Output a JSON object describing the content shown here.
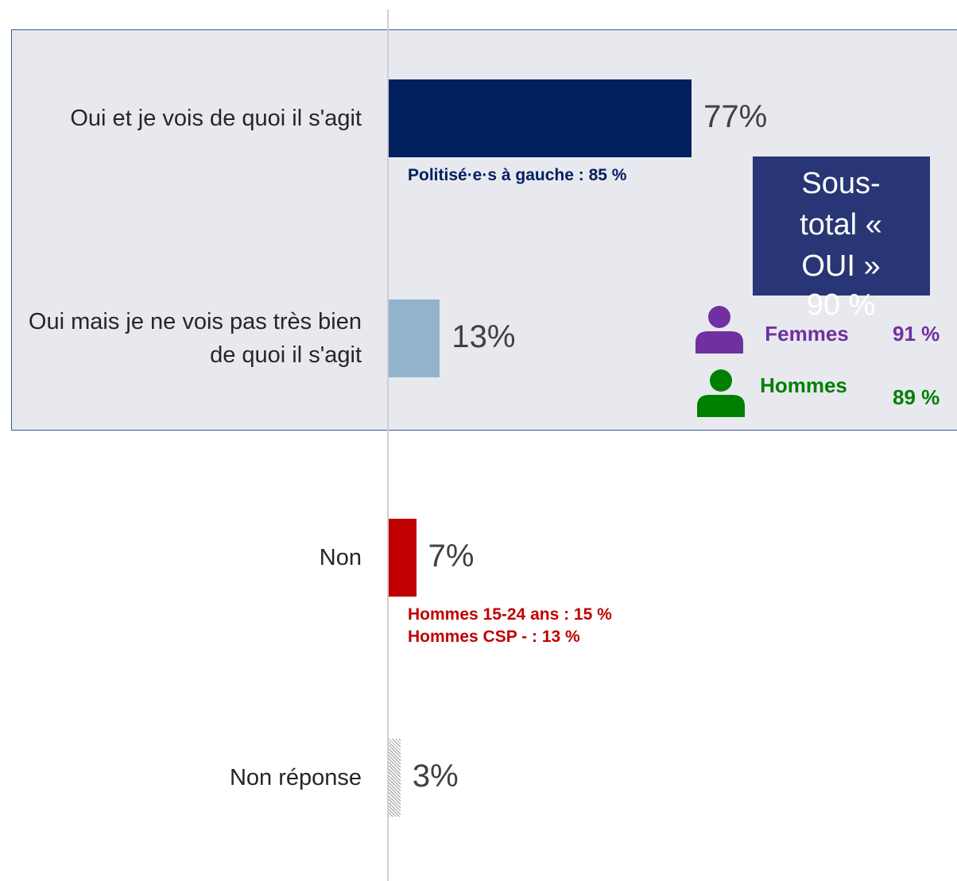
{
  "chart_data": {
    "type": "bar",
    "orientation": "horizontal",
    "categories": [
      "Oui et je vois de quoi il s'agit",
      "Oui mais je ne vois pas très bien de quoi il s'agit",
      "Non",
      "Non réponse"
    ],
    "values": [
      77,
      13,
      7,
      3
    ],
    "value_labels": [
      "77%",
      "13%",
      "7%",
      "3%"
    ],
    "colors": [
      "#002060",
      "#93b3cc",
      "#c00000",
      "hatch"
    ],
    "notes": [
      {
        "row": 0,
        "color": "#002060",
        "lines": [
          "Politisé·e·s  à gauche : 85 %"
        ]
      },
      {
        "row": 2,
        "color": "#c00000",
        "lines": [
          "Hommes 15-24 ans : 15 %",
          "Hommes CSP - : 13 %"
        ]
      }
    ],
    "subtotal": {
      "title": "Sous-total « OUI »",
      "value": "90 %"
    },
    "gender": [
      {
        "label": "Femmes",
        "value": "91 %",
        "color": "#7030a0"
      },
      {
        "label": "Hommes",
        "value": "89 %",
        "color": "#008000"
      }
    ]
  }
}
